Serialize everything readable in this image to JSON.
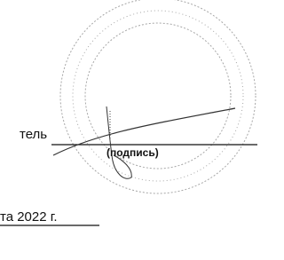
{
  "signature_block": {
    "role_fragment": "тель",
    "signature_caption": "(подпись)",
    "date_fragment": "та 2022 г."
  }
}
